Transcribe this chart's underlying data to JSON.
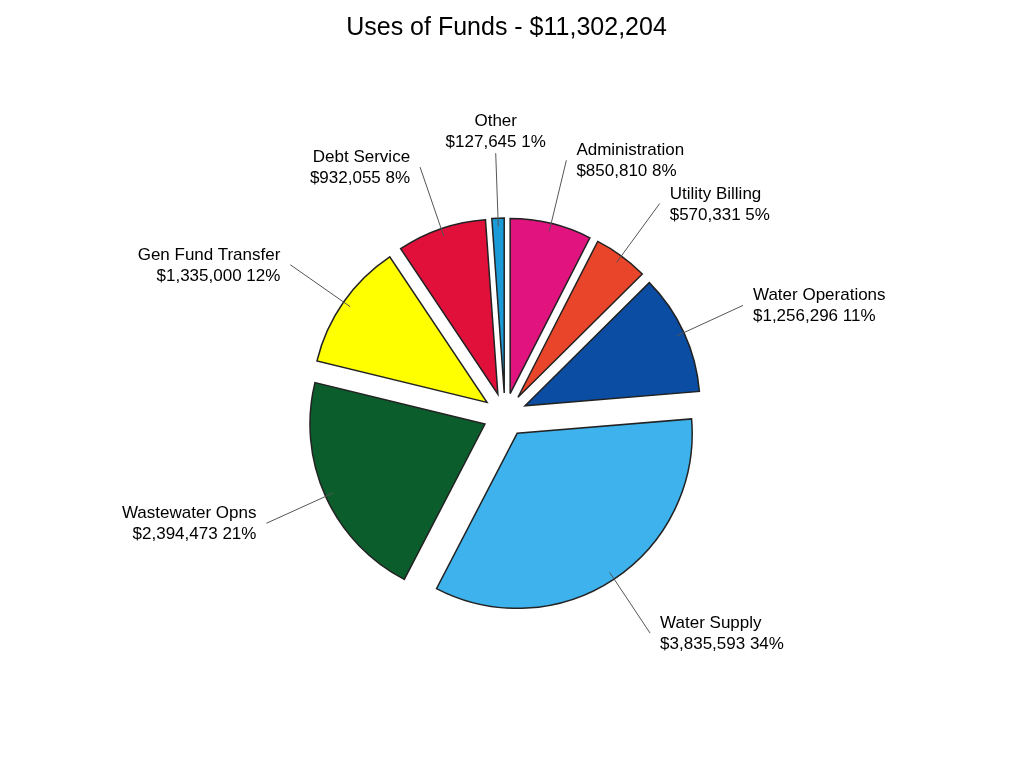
{
  "chart_data": {
    "type": "pie",
    "title": "Uses of Funds - $11,302,204",
    "categories": [
      "Administration",
      "Utility Billing",
      "Water Operations",
      "Water Supply",
      "Wastewater Opns",
      "Gen Fund Transfer",
      "Debt Service",
      "Other"
    ],
    "values": [
      850810,
      570331,
      1256296,
      3835593,
      2394473,
      1335000,
      932055,
      127645
    ],
    "colors": [
      "#e0137f",
      "#e8452b",
      "#0a4da2",
      "#3db2ec",
      "#0b5e2c",
      "#ffff00",
      "#e0103a",
      "#1a9ad6"
    ],
    "value_labels": [
      "$850,810  8%",
      "$570,331  5%",
      "$1,256,296  11%",
      "$3,835,593  34%",
      "$2,394,473  21%",
      "$1,335,000  12%",
      "$932,055  8%",
      "$127,645  1%"
    ]
  }
}
